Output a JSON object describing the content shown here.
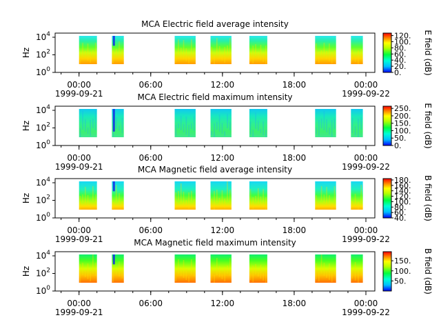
{
  "chart_data": [
    {
      "type": "heatmap",
      "title": "MCA  Electric field average intensity",
      "ylabel": "Hz",
      "y_scale": "log",
      "y_ticks": [
        {
          "e": "0"
        },
        {
          "e": "2"
        },
        {
          "e": "4"
        }
      ],
      "x_ticks": [
        {
          "label": "00:00",
          "date": "1999-09-21"
        },
        {
          "label": "06:00",
          "date": ""
        },
        {
          "label": "12:00",
          "date": ""
        },
        {
          "label": "18:00",
          "date": ""
        },
        {
          "label": "00:00",
          "date": "1999-09-22"
        }
      ],
      "colorbar": {
        "label": "E field (dB)",
        "min": 0,
        "max": 128,
        "ticks": [
          "0.",
          "20.",
          "40.",
          "60.",
          "80.",
          "100.",
          "120."
        ],
        "tick_values": [
          0,
          20,
          40,
          60,
          80,
          100,
          120
        ]
      },
      "blocks": [
        {
          "start": "1999-09-21T00:00",
          "end": "1999-09-21T01:30"
        },
        {
          "start": "1999-09-21T02:45",
          "end": "1999-09-21T03:45"
        },
        {
          "start": "1999-09-21T08:00",
          "end": "1999-09-21T09:45"
        },
        {
          "start": "1999-09-21T11:00",
          "end": "1999-09-21T12:45"
        },
        {
          "start": "1999-09-21T14:15",
          "end": "1999-09-21T15:45"
        },
        {
          "start": "1999-09-21T19:45",
          "end": "1999-09-21T21:30"
        },
        {
          "start": "1999-09-21T22:45",
          "end": "1999-09-21T23:45"
        }
      ]
    },
    {
      "type": "heatmap",
      "title": "MCA  Electric field maximum intensity",
      "ylabel": "Hz",
      "y_scale": "log",
      "y_ticks": [
        {
          "e": "0"
        },
        {
          "e": "2"
        },
        {
          "e": "4"
        }
      ],
      "x_ticks": [
        {
          "label": "00:00",
          "date": "1999-09-21"
        },
        {
          "label": "06:00",
          "date": ""
        },
        {
          "label": "12:00",
          "date": ""
        },
        {
          "label": "18:00",
          "date": ""
        },
        {
          "label": "00:00",
          "date": "1999-09-22"
        }
      ],
      "colorbar": {
        "label": "E field (dB)",
        "min": 0,
        "max": 265,
        "ticks": [
          "0.",
          "50.",
          "100.",
          "150.",
          "200.",
          "250."
        ],
        "tick_values": [
          0,
          50,
          100,
          150,
          200,
          250
        ]
      },
      "blocks": [
        {
          "start": "1999-09-21T00:00",
          "end": "1999-09-21T01:30"
        },
        {
          "start": "1999-09-21T02:45",
          "end": "1999-09-21T03:45"
        },
        {
          "start": "1999-09-21T08:00",
          "end": "1999-09-21T09:45"
        },
        {
          "start": "1999-09-21T11:00",
          "end": "1999-09-21T12:45"
        },
        {
          "start": "1999-09-21T14:15",
          "end": "1999-09-21T15:45"
        },
        {
          "start": "1999-09-21T19:45",
          "end": "1999-09-21T21:30"
        },
        {
          "start": "1999-09-21T22:45",
          "end": "1999-09-21T23:45"
        }
      ]
    },
    {
      "type": "heatmap",
      "title": "MCA  Magnetic field average intensity",
      "ylabel": "Hz",
      "y_scale": "log",
      "y_ticks": [
        {
          "e": "0"
        },
        {
          "e": "2"
        },
        {
          "e": "4"
        }
      ],
      "x_ticks": [
        {
          "label": "00:00",
          "date": "1999-09-21"
        },
        {
          "label": "06:00",
          "date": ""
        },
        {
          "label": "12:00",
          "date": ""
        },
        {
          "label": "18:00",
          "date": ""
        },
        {
          "label": "00:00",
          "date": "1999-09-22"
        }
      ],
      "colorbar": {
        "label": "B field (dB)",
        "min": 40,
        "max": 185,
        "ticks": [
          "40.",
          "60.",
          "80.",
          "100.",
          "120.",
          "140.",
          "160.",
          "180."
        ],
        "tick_values": [
          40,
          60,
          80,
          100,
          120,
          140,
          160,
          180
        ]
      },
      "blocks": [
        {
          "start": "1999-09-21T00:00",
          "end": "1999-09-21T01:30"
        },
        {
          "start": "1999-09-21T02:45",
          "end": "1999-09-21T03:45"
        },
        {
          "start": "1999-09-21T08:00",
          "end": "1999-09-21T09:45"
        },
        {
          "start": "1999-09-21T11:00",
          "end": "1999-09-21T12:45"
        },
        {
          "start": "1999-09-21T14:15",
          "end": "1999-09-21T15:45"
        },
        {
          "start": "1999-09-21T19:45",
          "end": "1999-09-21T21:30"
        },
        {
          "start": "1999-09-21T22:45",
          "end": "1999-09-21T23:45"
        }
      ]
    },
    {
      "type": "heatmap",
      "title": "MCA  Magnetic field maximum intensity",
      "ylabel": "Hz",
      "y_scale": "log",
      "y_ticks": [
        {
          "e": "0"
        },
        {
          "e": "2"
        },
        {
          "e": "4"
        }
      ],
      "x_ticks": [
        {
          "label": "00:00",
          "date": "1999-09-21"
        },
        {
          "label": "06:00",
          "date": ""
        },
        {
          "label": "12:00",
          "date": ""
        },
        {
          "label": "18:00",
          "date": ""
        },
        {
          "label": "00:00",
          "date": "1999-09-22"
        }
      ],
      "colorbar": {
        "label": "B field (dB)",
        "min": 0,
        "max": 195,
        "ticks": [
          "50.",
          "100.",
          "150."
        ],
        "tick_values": [
          50,
          100,
          150
        ]
      },
      "blocks": [
        {
          "start": "1999-09-21T00:00",
          "end": "1999-09-21T01:30"
        },
        {
          "start": "1999-09-21T02:45",
          "end": "1999-09-21T03:45"
        },
        {
          "start": "1999-09-21T08:00",
          "end": "1999-09-21T09:45"
        },
        {
          "start": "1999-09-21T11:00",
          "end": "1999-09-21T12:45"
        },
        {
          "start": "1999-09-21T14:15",
          "end": "1999-09-21T15:45"
        },
        {
          "start": "1999-09-21T19:45",
          "end": "1999-09-21T21:30"
        },
        {
          "start": "1999-09-21T22:45",
          "end": "1999-09-21T23:45"
        }
      ]
    }
  ]
}
